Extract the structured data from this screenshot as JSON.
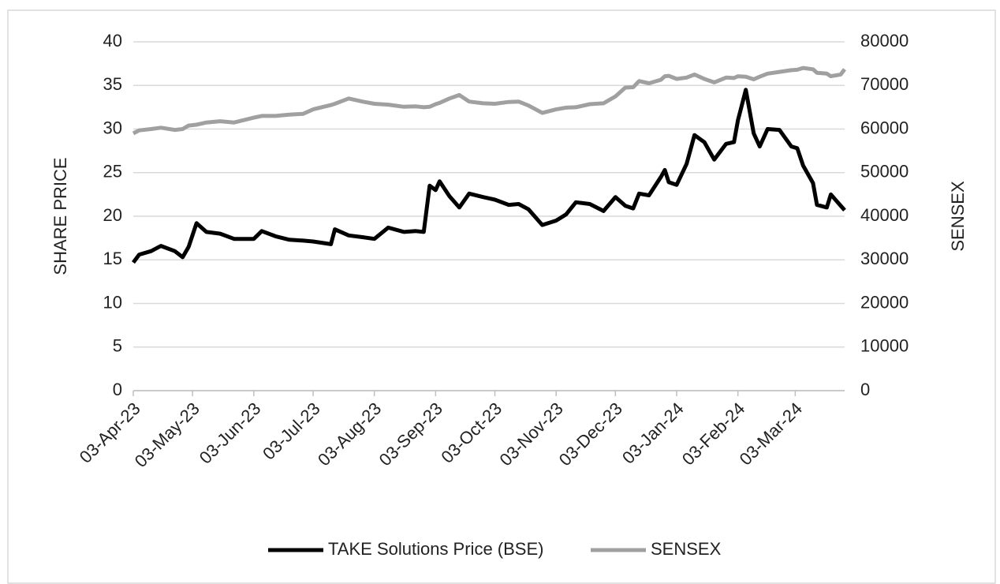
{
  "chart_data": {
    "type": "line",
    "y_label": "SHARE PRICE",
    "y2_label": "SENSEX",
    "x": [
      "2023-04-03",
      "2023-04-06",
      "2023-04-12",
      "2023-04-17",
      "2023-04-24",
      "2023-04-28",
      "2023-05-01",
      "2023-05-05",
      "2023-05-10",
      "2023-05-17",
      "2023-05-24",
      "2023-06-03",
      "2023-06-07",
      "2023-06-14",
      "2023-06-21",
      "2023-06-28",
      "2023-07-03",
      "2023-07-12",
      "2023-07-14",
      "2023-07-21",
      "2023-07-28",
      "2023-08-03",
      "2023-08-10",
      "2023-08-18",
      "2023-08-24",
      "2023-08-28",
      "2023-08-31",
      "2023-09-03",
      "2023-09-05",
      "2023-09-10",
      "2023-09-15",
      "2023-09-20",
      "2023-09-27",
      "2023-10-03",
      "2023-10-10",
      "2023-10-15",
      "2023-10-20",
      "2023-10-27",
      "2023-11-03",
      "2023-11-08",
      "2023-11-13",
      "2023-11-20",
      "2023-11-27",
      "2023-12-03",
      "2023-12-08",
      "2023-12-12",
      "2023-12-15",
      "2023-12-20",
      "2023-12-26",
      "2023-12-28",
      "2023-12-30",
      "2024-01-03",
      "2024-01-08",
      "2024-01-12",
      "2024-01-17",
      "2024-01-22",
      "2024-01-28",
      "2024-02-01",
      "2024-02-03",
      "2024-02-07",
      "2024-02-11",
      "2024-02-14",
      "2024-02-18",
      "2024-02-24",
      "2024-03-01",
      "2024-03-04",
      "2024-03-07",
      "2024-03-12",
      "2024-03-14",
      "2024-03-19",
      "2024-03-21",
      "2024-03-26",
      "2024-03-28"
    ],
    "series": [
      {
        "name": "TAKE Solutions Price (BSE)",
        "color": "#000000",
        "values": [
          14.7,
          15.6,
          16.0,
          16.6,
          16.0,
          15.3,
          16.5,
          19.2,
          18.2,
          18.0,
          17.4,
          17.4,
          18.3,
          17.7,
          17.3,
          17.2,
          17.1,
          16.8,
          18.5,
          17.8,
          17.6,
          17.4,
          18.7,
          18.2,
          18.3,
          18.2,
          23.5,
          23.0,
          24.0,
          22.3,
          21.0,
          22.6,
          22.2,
          21.9,
          21.3,
          21.4,
          20.8,
          19.0,
          19.5,
          20.2,
          21.6,
          21.4,
          20.6,
          22.2,
          21.2,
          20.9,
          22.6,
          22.4,
          24.5,
          25.3,
          23.9,
          23.6,
          26.0,
          29.3,
          28.5,
          26.5,
          28.3,
          28.5,
          31.0,
          34.5,
          29.5,
          28.0,
          30.0,
          29.9,
          28.0,
          27.8,
          25.8,
          23.8,
          21.3,
          21.0,
          22.5,
          21.2,
          20.7
        ]
      },
      {
        "name": "SENSEX",
        "color": "#a0a0a0",
        "axis": "y2",
        "values": [
          59000,
          59700,
          60000,
          60300,
          59800,
          60000,
          60800,
          61000,
          61500,
          61800,
          61500,
          62600,
          63000,
          63000,
          63300,
          63500,
          64500,
          65500,
          65800,
          67000,
          66300,
          65800,
          65600,
          65100,
          65200,
          65000,
          65100,
          65700,
          66000,
          67000,
          67800,
          66300,
          65900,
          65800,
          66200,
          66300,
          65400,
          63700,
          64500,
          64900,
          65000,
          65700,
          65900,
          67500,
          69500,
          69600,
          71000,
          70500,
          71300,
          72100,
          72200,
          71500,
          71800,
          72500,
          71500,
          70700,
          71800,
          71700,
          72100,
          72000,
          71400,
          72000,
          72700,
          73100,
          73500,
          73600,
          74000,
          73700,
          72900,
          72700,
          72100,
          72500,
          73700
        ]
      }
    ],
    "xlim": [
      "2023-04-03",
      "2024-03-28"
    ],
    "xticks": [
      {
        "value": "2023-04-03",
        "label": "03-Apr-23"
      },
      {
        "value": "2023-05-03",
        "label": "03-May-23"
      },
      {
        "value": "2023-06-03",
        "label": "03-Jun-23"
      },
      {
        "value": "2023-07-03",
        "label": "03-Jul-23"
      },
      {
        "value": "2023-08-03",
        "label": "03-Aug-23"
      },
      {
        "value": "2023-09-03",
        "label": "03-Sep-23"
      },
      {
        "value": "2023-10-03",
        "label": "03-Oct-23"
      },
      {
        "value": "2023-11-03",
        "label": "03-Nov-23"
      },
      {
        "value": "2023-12-03",
        "label": "03-Dec-23"
      },
      {
        "value": "2024-01-03",
        "label": "03-Jan-24"
      },
      {
        "value": "2024-02-03",
        "label": "03-Feb-24"
      },
      {
        "value": "2024-03-03",
        "label": "03-Mar-24"
      }
    ],
    "ylim": [
      0,
      40
    ],
    "yticks": [
      0,
      5,
      10,
      15,
      20,
      25,
      30,
      35,
      40
    ],
    "y2lim": [
      0,
      80000
    ],
    "y2ticks": [
      0,
      10000,
      20000,
      30000,
      40000,
      50000,
      60000,
      70000,
      80000
    ],
    "grid": true,
    "legend": "bottom"
  }
}
